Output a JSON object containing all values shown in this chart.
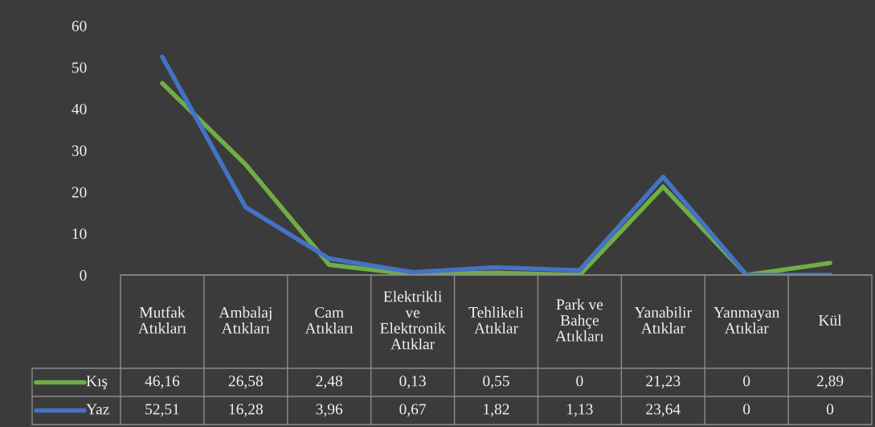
{
  "chart_data": {
    "type": "line",
    "categories": [
      "Mutfak Atıkları",
      "Ambalaj Atıkları",
      "Cam Atıkları",
      "Elektrikli ve Elektronik Atıklar",
      "Tehlikeli Atıklar",
      "Park ve Bahçe Atıkları",
      "Yanabilir Atıklar",
      "Yanmayan Atıklar",
      "Kül"
    ],
    "series": [
      {
        "name": "Kış",
        "color": "#70ad47",
        "values": [
          46.16,
          26.58,
          2.48,
          0.13,
          0.55,
          0,
          21.23,
          0,
          2.89
        ],
        "value_labels": [
          "46,16",
          "26,58",
          "2,48",
          "0,13",
          "0,55",
          "0",
          "21,23",
          "0",
          "2,89"
        ]
      },
      {
        "name": "Yaz",
        "color": "#4472c4",
        "values": [
          52.51,
          16.28,
          3.96,
          0.67,
          1.82,
          1.13,
          23.64,
          0,
          0
        ],
        "value_labels": [
          "52,51",
          "16,28",
          "3,96",
          "0,67",
          "1,82",
          "1,13",
          "23,64",
          "0",
          "0"
        ]
      }
    ],
    "ylim": [
      0,
      60
    ],
    "yticks": [
      0,
      10,
      20,
      30,
      40,
      50,
      60
    ],
    "legend": "bottom left",
    "grid": false,
    "marker": "none",
    "line_style": "solid"
  }
}
